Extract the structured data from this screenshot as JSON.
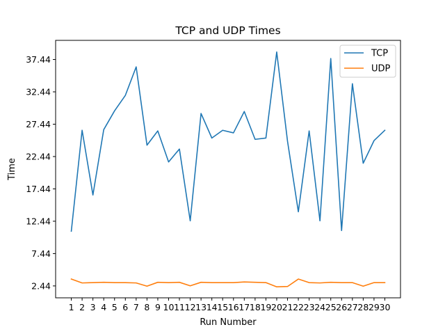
{
  "chart_data": {
    "type": "line",
    "title": "TCP and UDP Times",
    "xlabel": "Run Number",
    "ylabel": "Time",
    "x": [
      1,
      2,
      3,
      4,
      5,
      6,
      7,
      8,
      9,
      10,
      11,
      12,
      13,
      14,
      15,
      16,
      17,
      18,
      19,
      20,
      21,
      22,
      23,
      24,
      25,
      26,
      27,
      28,
      29,
      30
    ],
    "x_tick_labels": [
      "1",
      "2",
      "3",
      "4",
      "5",
      "6",
      "7",
      "8",
      "9",
      "10",
      "11",
      "12",
      "13",
      "14",
      "15",
      "16",
      "17",
      "18",
      "19",
      "20",
      "21",
      "22",
      "23",
      "24",
      "25",
      "26",
      "27",
      "28",
      "29",
      "30"
    ],
    "y_ticks": [
      2.44,
      7.44,
      12.44,
      17.44,
      22.44,
      27.44,
      32.44,
      37.44
    ],
    "y_tick_labels": [
      "2.44",
      "7.44",
      "12.44",
      "17.44",
      "22.44",
      "27.44",
      "32.44",
      "37.44"
    ],
    "xlim": [
      -0.45,
      31.45
    ],
    "ylim": [
      0.6,
      40.4
    ],
    "grid": false,
    "legend": "top-right",
    "series": [
      {
        "name": "TCP",
        "color": "#1f77b4",
        "values": [
          10.9,
          26.5,
          16.5,
          26.6,
          29.5,
          31.9,
          36.3,
          24.2,
          26.4,
          21.6,
          23.6,
          12.5,
          29.1,
          25.3,
          26.5,
          26.1,
          29.4,
          25.1,
          25.3,
          38.6,
          24.8,
          13.9,
          26.4,
          12.5,
          37.6,
          11.0,
          33.7,
          21.4,
          24.9,
          26.5
        ]
      },
      {
        "name": "UDP",
        "color": "#ff7f0e",
        "values": [
          3.5,
          2.9,
          2.95,
          3.0,
          2.95,
          2.95,
          2.9,
          2.4,
          3.0,
          2.95,
          3.0,
          2.45,
          3.0,
          2.95,
          2.95,
          2.95,
          3.05,
          3.0,
          2.95,
          2.3,
          2.35,
          3.5,
          2.95,
          2.9,
          3.0,
          2.95,
          2.95,
          2.4,
          2.95,
          2.95
        ]
      }
    ]
  }
}
